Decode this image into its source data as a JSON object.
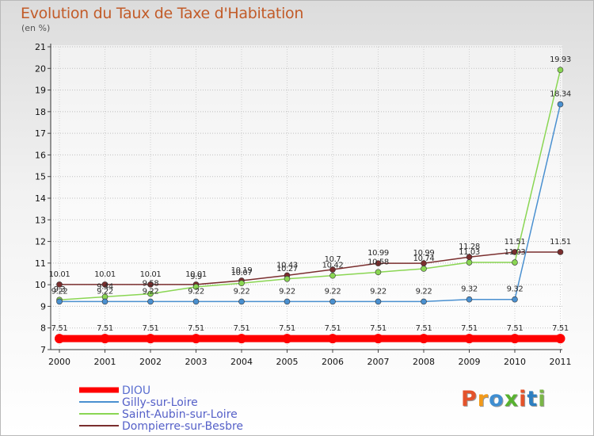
{
  "header": {
    "title": "Evolution du Taux de Taxe d'Habitation",
    "unit": "(en %)"
  },
  "logo": {
    "letters": [
      "P",
      "r",
      "o",
      "x",
      "i",
      "t",
      "i"
    ],
    "colors": [
      "#e4532b",
      "#f39a1a",
      "#3f8ed1",
      "#58b230",
      "#e4532b",
      "#2d7fc1",
      "#7ab648"
    ]
  },
  "chart_data": {
    "type": "line",
    "title": "Evolution du Taux de Taxe d'Habitation",
    "ylabel": "(en %)",
    "xlabel": "",
    "x": [
      "2000",
      "2001",
      "2002",
      "2003",
      "2004",
      "2005",
      "2006",
      "2007",
      "2008",
      "2009",
      "2010",
      "2011"
    ],
    "yticks": [
      "7",
      "8",
      "9",
      "10",
      "11",
      "12",
      "13",
      "14",
      "15",
      "16",
      "17",
      "18",
      "19",
      "20",
      "21"
    ],
    "ylim": [
      7,
      21
    ],
    "series": [
      {
        "name": "DIOU",
        "color": "#ff0000",
        "values": [
          7.51,
          7.51,
          7.51,
          7.51,
          7.51,
          7.51,
          7.51,
          7.51,
          7.51,
          7.51,
          7.51,
          7.51
        ],
        "labels": [
          "7.51",
          "7.51",
          "7.51",
          "7.51",
          "7.51",
          "7.51",
          "7.51",
          "7.51",
          "7.51",
          "7.51",
          "7.51",
          "7.51"
        ]
      },
      {
        "name": "Gilly-sur-Loire",
        "color": "#4a90d0",
        "values": [
          9.22,
          9.22,
          9.22,
          9.22,
          9.22,
          9.22,
          9.22,
          9.22,
          9.22,
          9.32,
          9.32,
          18.34
        ],
        "labels": [
          "9.22",
          "9.22",
          "9.22",
          "9.22",
          "9.22",
          "9.22",
          "9.22",
          "9.22",
          "9.22",
          "9.32",
          "9.32",
          "18.34"
        ]
      },
      {
        "name": "Saint-Aubin-sur-Loire",
        "color": "#8ad653",
        "values": [
          9.3,
          9.44,
          9.58,
          9.9,
          10.07,
          10.27,
          10.42,
          10.58,
          10.74,
          11.03,
          11.03,
          19.93
        ],
        "labels": [
          "9.3",
          "9.44",
          "9.58",
          "9.9",
          "10.07",
          "10.27",
          "10.42",
          "10.58",
          "10.74",
          "11.03",
          "11.03",
          "19.93"
        ]
      },
      {
        "name": "Dompierre-sur-Besbre",
        "color": "#7a2e2e",
        "values": [
          10.01,
          10.01,
          10.01,
          10.01,
          10.19,
          10.43,
          10.7,
          10.99,
          10.99,
          11.28,
          11.51,
          11.51
        ],
        "labels": [
          "10.01",
          "10.01",
          "10.01",
          "10.01",
          "10.19",
          "10.43",
          "10.7",
          "10.99",
          "10.99",
          "11.28",
          "11.51",
          "11.51"
        ]
      }
    ]
  }
}
